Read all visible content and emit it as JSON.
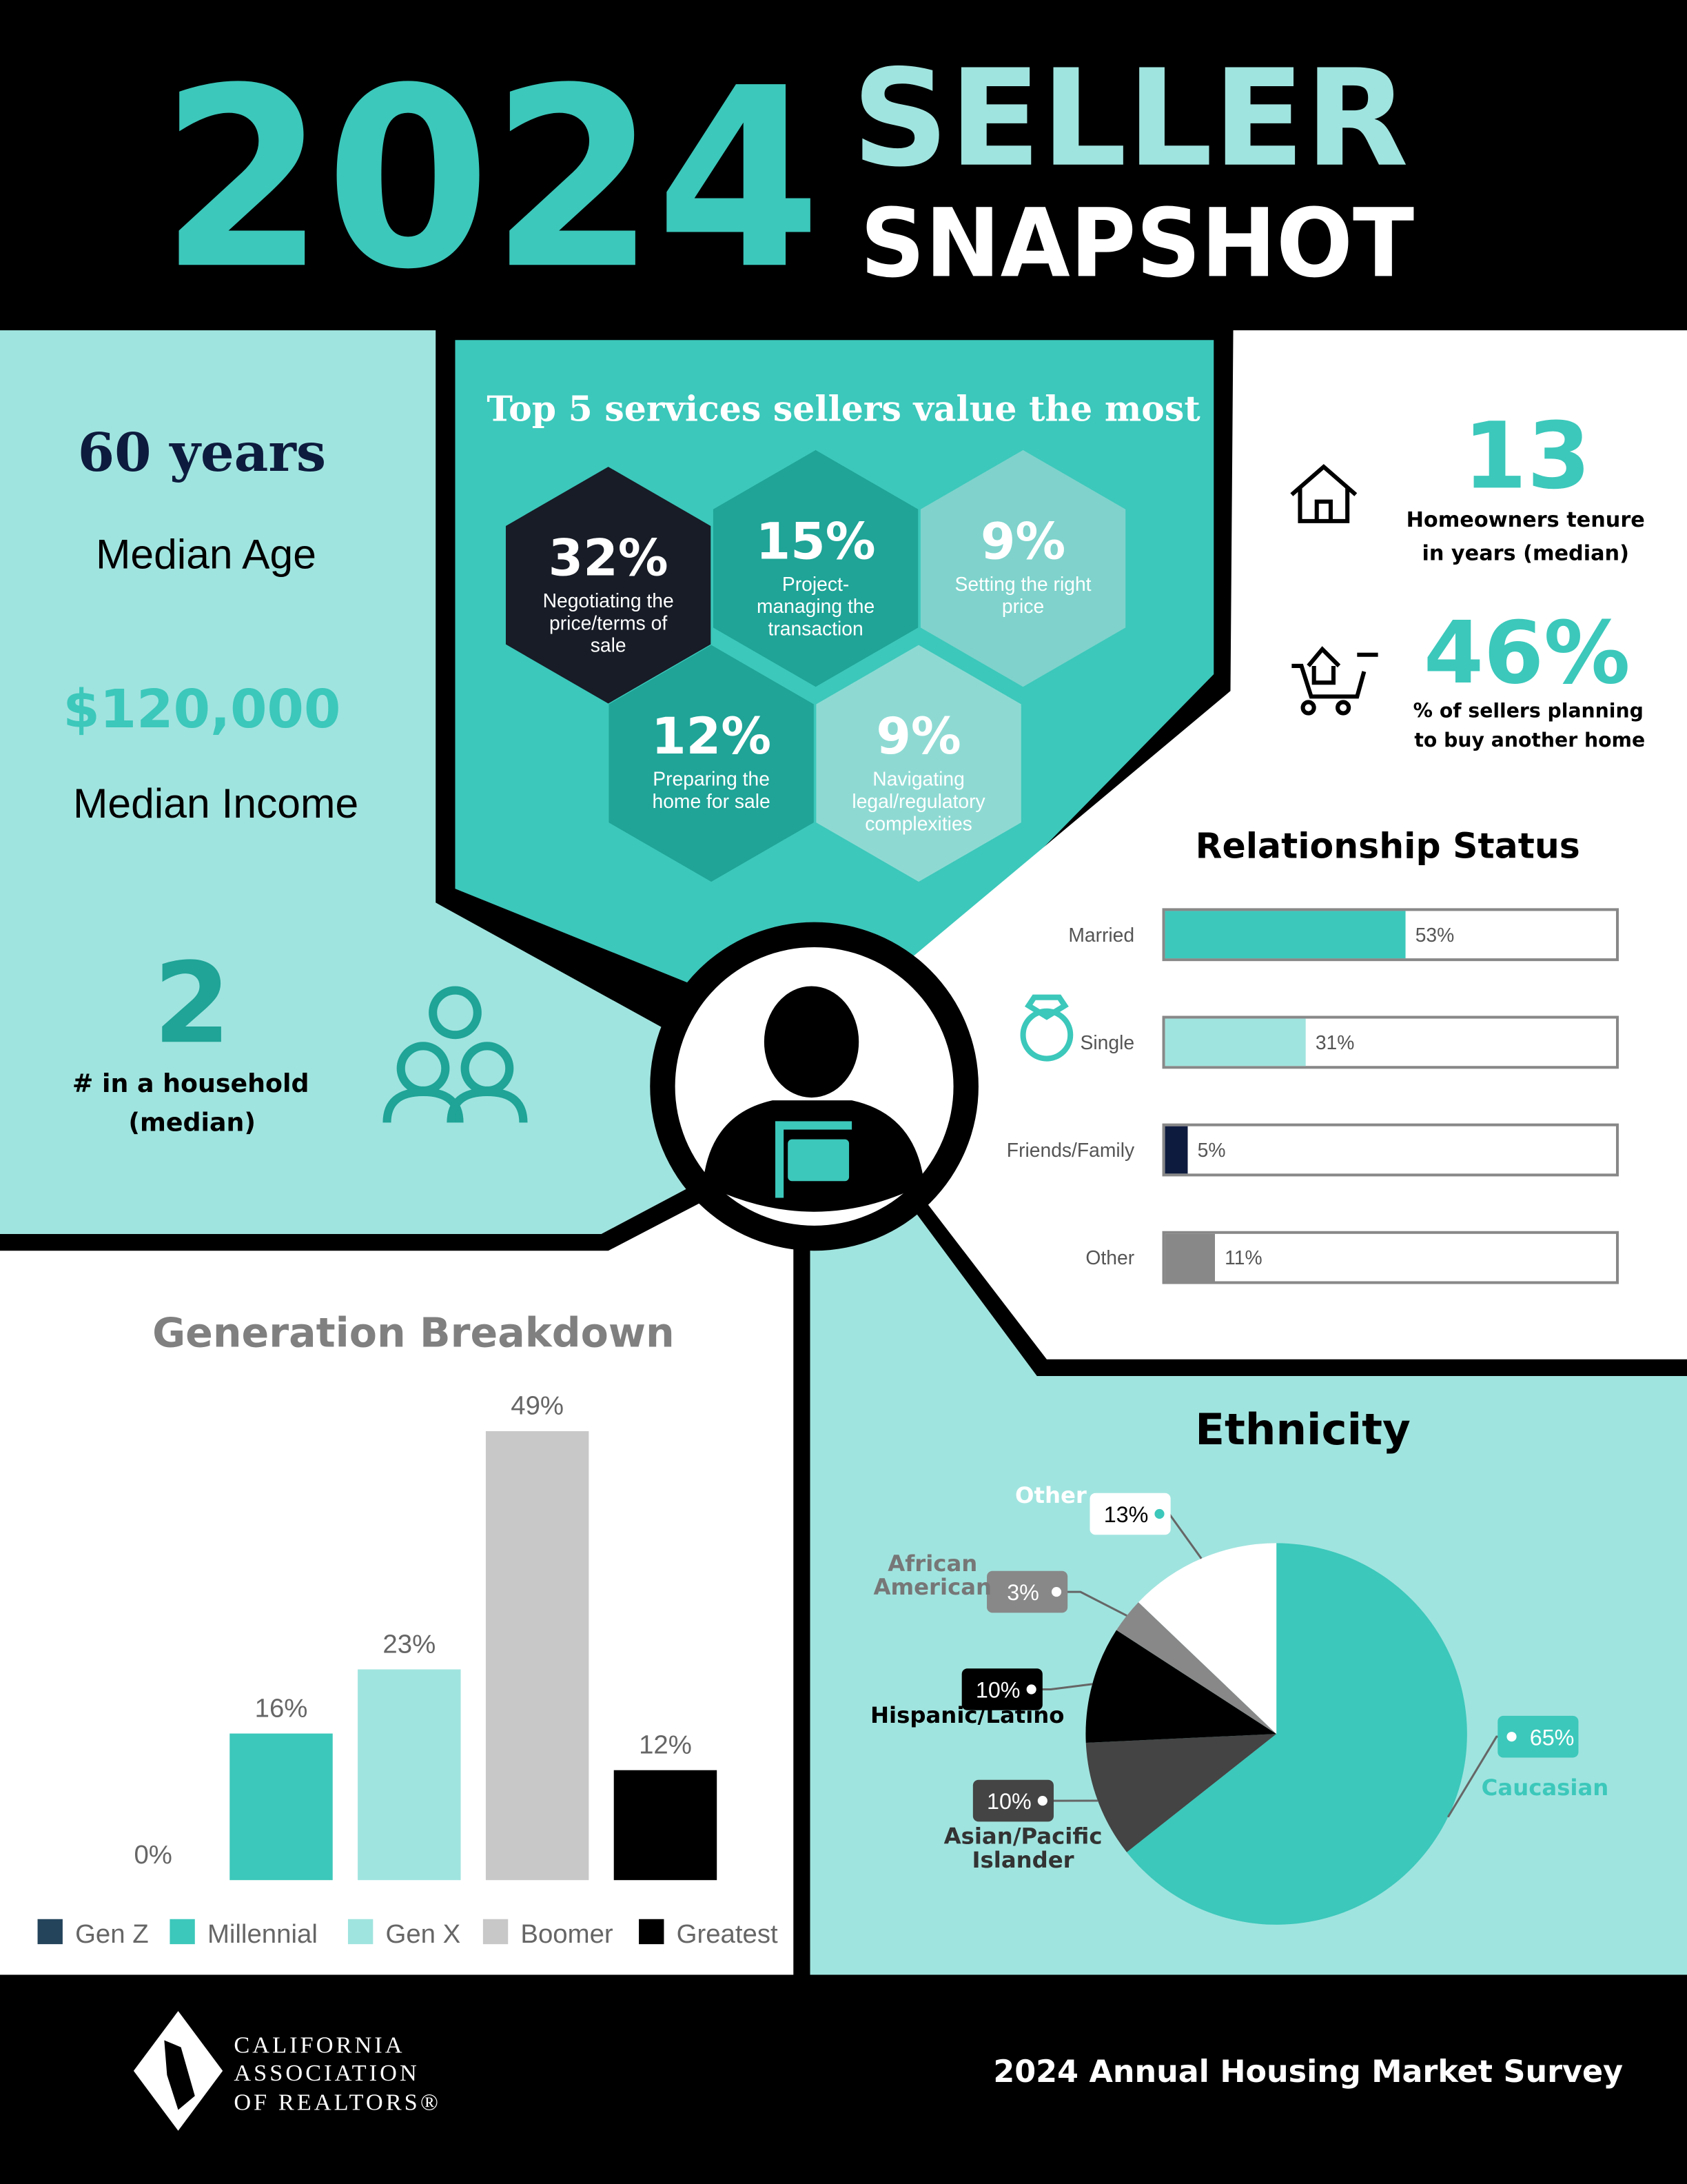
{
  "header": {
    "year": "2024",
    "title_line1": "SELLER",
    "title_line2": "SNAPSHOT"
  },
  "demographics": {
    "median_age": "60 years",
    "median_age_label": "Median Age",
    "median_income": "$120,000",
    "median_income_label": "Median Income",
    "household": "2",
    "household_label": [
      "# in a household",
      "(median)"
    ]
  },
  "services": {
    "title": "Top 5 services sellers value the most",
    "items": [
      {
        "value": "32%",
        "label": [
          "Negotiating the",
          "price/terms of",
          "sale"
        ]
      },
      {
        "value": "15%",
        "label": [
          "Project-",
          "managing the",
          "transaction"
        ]
      },
      {
        "value": "9%",
        "label": [
          "Setting the right",
          "price"
        ]
      },
      {
        "value": "12%",
        "label": [
          "Preparing the",
          "home for sale"
        ]
      },
      {
        "value": "9%",
        "label": [
          "Navigating",
          "legal/regulatory",
          "complexities"
        ]
      }
    ]
  },
  "tenure": {
    "value": "13",
    "label": [
      "Homeowners tenure",
      "in years (median)"
    ]
  },
  "buy_again": {
    "value": "46%",
    "label": [
      "% of sellers planning",
      "to buy another home"
    ]
  },
  "relationship": {
    "type": "bar",
    "title": "Relationship Status",
    "categories": [
      "Married",
      "Single",
      "Friends/Family",
      "Other"
    ],
    "values": [
      53,
      31,
      5,
      11
    ],
    "value_labels": [
      "53%",
      "31%",
      "5%",
      "11%"
    ],
    "colors": [
      "#3cc8bb",
      "#a0e4df",
      "#0d1b3e",
      "#888888"
    ],
    "xlim": [
      0,
      100
    ]
  },
  "generation": {
    "type": "bar",
    "title": "Generation Breakdown",
    "categories": [
      "Gen Z",
      "Millennial",
      "Gen X",
      "Boomer",
      "Greatest"
    ],
    "values": [
      0,
      16,
      23,
      49,
      12
    ],
    "value_labels": [
      "0%",
      "16%",
      "23%",
      "49%",
      "12%"
    ],
    "colors": [
      "#24445c",
      "#3cc8bb",
      "#a0e4df",
      "#c8c8c8",
      "#000000"
    ],
    "ylim": [
      0,
      50
    ]
  },
  "ethnicity": {
    "type": "pie",
    "title": "Ethnicity",
    "categories": [
      "Caucasian",
      "Asian/Pacific Islander",
      "Hispanic/Latino",
      "African American",
      "Other"
    ],
    "values": [
      65,
      10,
      10,
      3,
      13
    ],
    "value_labels": [
      "65%",
      "10%",
      "10%",
      "3%",
      "13%"
    ],
    "colors": [
      "#3cc8bb",
      "#444444",
      "#000000",
      "#888888",
      "#ffffff"
    ]
  },
  "footer": {
    "org": [
      "CALIFORNIA",
      "ASSOCIATION",
      "OF REALTORS®"
    ],
    "survey": "2024 Annual Housing Market Survey"
  }
}
